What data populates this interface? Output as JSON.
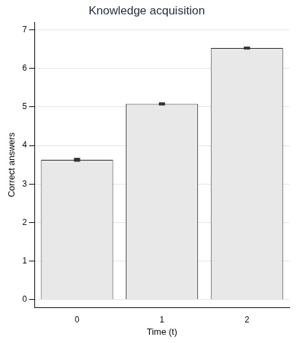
{
  "chart_data": {
    "type": "bar",
    "title": "Knowledge acquisition",
    "x_label": "Time (t)",
    "y_label": "Correct answers",
    "categories": [
      "0",
      "1",
      "2"
    ],
    "values": [
      3.63,
      5.08,
      6.53
    ],
    "errors": [
      0.04,
      0.03,
      0.03
    ],
    "color": "#e8e8e8",
    "ylim": [
      -0.2,
      7.2
    ],
    "yticks": [
      0,
      1,
      2,
      3,
      4,
      5,
      6,
      7
    ],
    "grid": true
  }
}
